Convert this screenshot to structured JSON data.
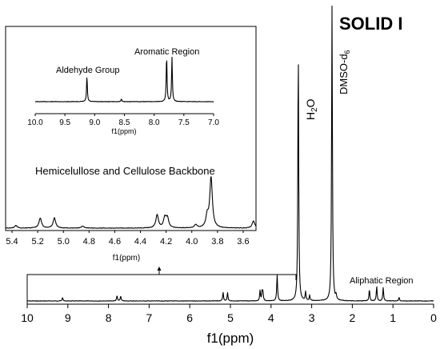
{
  "chart_data": [
    {
      "id": "main",
      "type": "line",
      "title": "SOLID I",
      "xlabel": "f1(ppm)",
      "xlim": [
        10,
        0
      ],
      "xticks": [
        10,
        9,
        8,
        7,
        6,
        5,
        4,
        3,
        2,
        1,
        0
      ],
      "annotations": [
        {
          "text": "H2O",
          "x": 3.33
        },
        {
          "text": "DMSO-d6",
          "x": 2.5
        },
        {
          "text": "Aliphatic Region",
          "x": 1.5
        }
      ],
      "peaks": [
        {
          "x": 9.13,
          "h": 0.012
        },
        {
          "x": 7.79,
          "h": 0.018
        },
        {
          "x": 7.7,
          "h": 0.017
        },
        {
          "x": 5.18,
          "h": 0.03
        },
        {
          "x": 5.07,
          "h": 0.028
        },
        {
          "x": 4.27,
          "h": 0.035
        },
        {
          "x": 4.22,
          "h": 0.03
        },
        {
          "x": 4.2,
          "h": 0.028
        },
        {
          "x": 3.85,
          "h": 0.09
        },
        {
          "x": 3.33,
          "h": 0.86
        },
        {
          "x": 3.15,
          "h": 0.03
        },
        {
          "x": 3.05,
          "h": 0.018
        },
        {
          "x": 2.5,
          "h": 1.0
        },
        {
          "x": 2.4,
          "h": 0.015
        },
        {
          "x": 1.58,
          "h": 0.04
        },
        {
          "x": 1.4,
          "h": 0.05
        },
        {
          "x": 1.24,
          "h": 0.045
        },
        {
          "x": 0.85,
          "h": 0.012
        }
      ]
    },
    {
      "id": "inset_aromatic",
      "type": "line",
      "xlabel": "f1(ppm)",
      "xlim": [
        10.0,
        7.0
      ],
      "xticks": [
        "10.0",
        "9.5",
        "9.0",
        "8.5",
        "8.0",
        "7.5",
        "7.0"
      ],
      "annotations": [
        {
          "text": "Aldehyde Group",
          "x": 9.13
        },
        {
          "text": "Aromatic Region",
          "x": 7.75
        }
      ],
      "peaks": [
        {
          "x": 9.13,
          "h": 0.55
        },
        {
          "x": 8.55,
          "h": 0.06
        },
        {
          "x": 7.79,
          "h": 1.0
        },
        {
          "x": 7.7,
          "h": 0.95
        }
      ]
    },
    {
      "id": "inset_backbone",
      "type": "line",
      "xlabel": "f1(ppm)",
      "xlim": [
        5.45,
        3.5
      ],
      "xticks": [
        "5.4",
        "5.2",
        "5.0",
        "4.8",
        "4.6",
        "4.4",
        "4.2",
        "4.0",
        "3.8",
        "3.6"
      ],
      "annotations": [
        {
          "text": "Hemicelullose and Cellulose Backbone",
          "x": 4.5
        }
      ],
      "peaks": [
        {
          "x": 5.37,
          "h": 0.05
        },
        {
          "x": 5.18,
          "h": 0.2
        },
        {
          "x": 5.07,
          "h": 0.2
        },
        {
          "x": 4.85,
          "h": 0.04
        },
        {
          "x": 4.27,
          "h": 0.26
        },
        {
          "x": 4.21,
          "h": 0.2
        },
        {
          "x": 4.19,
          "h": 0.19
        },
        {
          "x": 3.97,
          "h": 0.06
        },
        {
          "x": 3.88,
          "h": 0.22
        },
        {
          "x": 3.85,
          "h": 1.0
        },
        {
          "x": 3.52,
          "h": 0.14
        }
      ]
    }
  ]
}
